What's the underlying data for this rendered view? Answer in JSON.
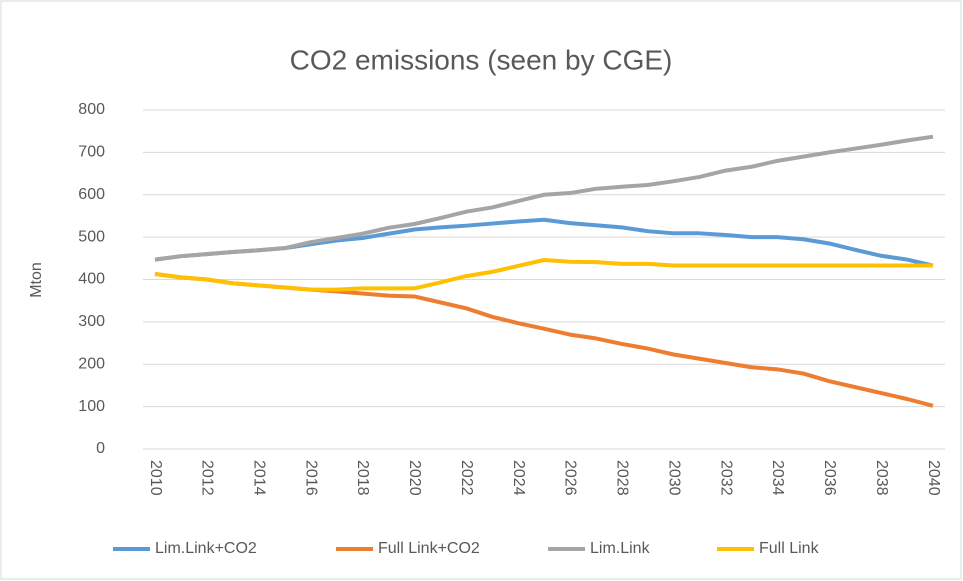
{
  "chart_data": {
    "type": "line",
    "title": "CO2 emissions (seen by CGE)",
    "y_label": "Mton",
    "x": [
      2010,
      2011,
      2012,
      2013,
      2014,
      2015,
      2016,
      2017,
      2018,
      2019,
      2020,
      2021,
      2022,
      2023,
      2024,
      2025,
      2026,
      2027,
      2028,
      2029,
      2030,
      2031,
      2032,
      2033,
      2034,
      2035,
      2036,
      2037,
      2038,
      2039,
      2040
    ],
    "xlim": [
      2010,
      2040
    ],
    "xticks": [
      2010,
      2012,
      2014,
      2016,
      2018,
      2020,
      2022,
      2024,
      2026,
      2028,
      2030,
      2032,
      2034,
      2036,
      2038,
      2040
    ],
    "ylim": [
      0,
      800
    ],
    "yticks": [
      0,
      100,
      200,
      300,
      400,
      500,
      600,
      700,
      800
    ],
    "grid": true,
    "legend": "bottom",
    "series": [
      {
        "name": "Lim.Link+CO2",
        "color": "#5b9bd5",
        "values": [
          447,
          455,
          460,
          465,
          469,
          474,
          483,
          492,
          498,
          508,
          518,
          523,
          527,
          532,
          537,
          541,
          533,
          528,
          523,
          514,
          509,
          509,
          505,
          500,
          500,
          495,
          485,
          470,
          456,
          447,
          433
        ]
      },
      {
        "name": "Full Link+CO2",
        "color": "#ed7d31",
        "values": [
          413,
          405,
          400,
          391,
          386,
          381,
          376,
          372,
          367,
          362,
          360,
          346,
          332,
          312,
          297,
          284,
          270,
          261,
          248,
          237,
          223,
          213,
          203,
          193,
          188,
          178,
          160,
          146,
          132,
          118,
          102
        ]
      },
      {
        "name": "Lim.Link",
        "color": "#a5a5a5",
        "values": [
          447,
          455,
          460,
          465,
          469,
          474,
          488,
          498,
          508,
          522,
          531,
          545,
          560,
          570,
          585,
          600,
          604,
          614,
          619,
          623,
          632,
          642,
          657,
          666,
          680,
          690,
          700,
          709,
          718,
          728,
          737
        ]
      },
      {
        "name": "Full Link",
        "color": "#ffc000",
        "values": [
          413,
          405,
          400,
          391,
          386,
          381,
          376,
          376,
          379,
          379,
          379,
          393,
          408,
          418,
          432,
          446,
          442,
          441,
          437,
          437,
          433,
          433,
          433,
          433,
          433,
          433,
          433,
          433,
          433,
          433,
          433
        ]
      }
    ]
  }
}
